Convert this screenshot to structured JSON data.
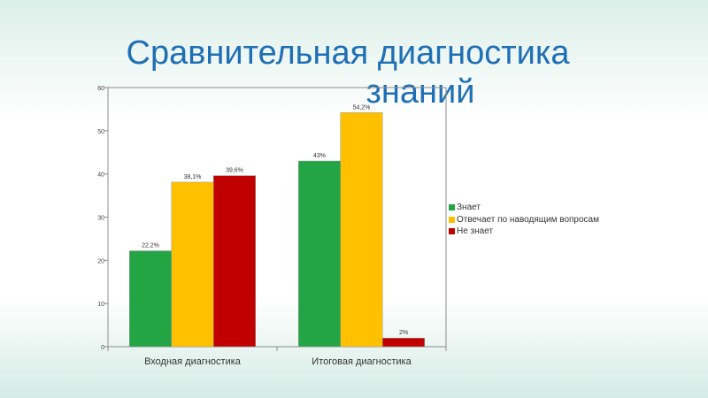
{
  "title_line1": "Сравнительная диагностика",
  "title_line2": "знаний",
  "chart_data": {
    "type": "bar",
    "categories": [
      "Входная диагностика",
      "Итоговая диагностика"
    ],
    "series": [
      {
        "name": "Знает",
        "values": [
          22.2,
          43
        ],
        "labels": [
          "22,2%",
          "43%"
        ],
        "color": "#23a546"
      },
      {
        "name": "Отвечает по наводящим вопросам",
        "values": [
          38.1,
          54.2
        ],
        "labels": [
          "38,1%",
          "54,2%"
        ],
        "color": "#ffc000"
      },
      {
        "name": "Не знает",
        "values": [
          39.6,
          2
        ],
        "labels": [
          "39,6%",
          "2%"
        ],
        "color": "#c00000"
      }
    ],
    "ylim": [
      0,
      60
    ],
    "yticks": [
      0,
      10,
      20,
      30,
      40,
      50,
      60
    ],
    "grid": false,
    "legend_position": "right"
  }
}
